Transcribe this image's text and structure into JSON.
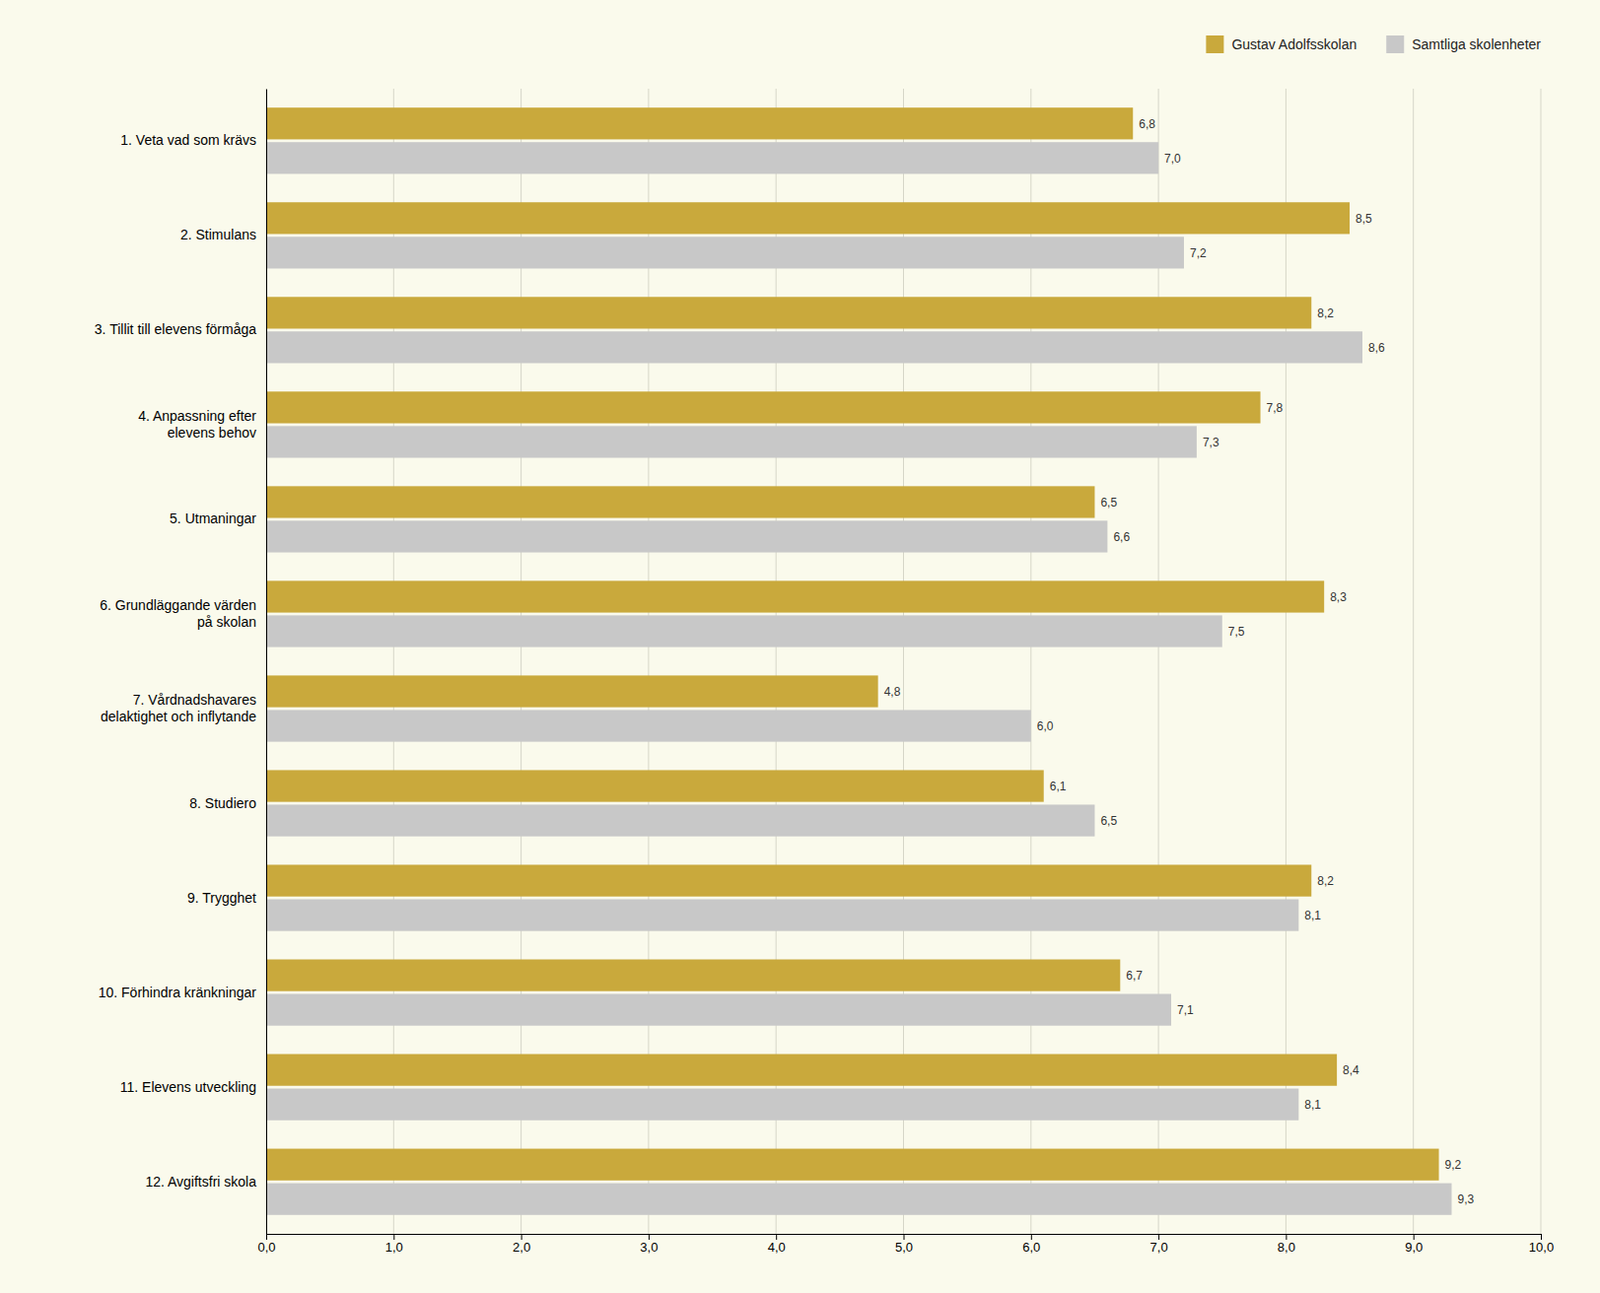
{
  "chart_data": {
    "type": "bar",
    "orientation": "horizontal",
    "categories": [
      "12. Avgiftsfri skola",
      "11. Elevens utveckling",
      "10. Förhindra kränkningar",
      "9. Trygghet",
      "8. Studiero",
      "7. Vårdnadshavares\ndelaktighet och inflytande",
      "6. Grundläggande värden\npå skolan",
      "5. Utmaningar",
      "4. Anpassning efter\nelevens behov",
      "3. Tillit till elevens förmåga",
      "2. Stimulans",
      "1. Veta vad som krävs"
    ],
    "series": [
      {
        "name": "Gustav Adolfsskolan",
        "color": "#C9A93C",
        "values": [
          9.2,
          8.4,
          6.7,
          8.2,
          6.1,
          4.8,
          8.3,
          6.5,
          7.8,
          8.2,
          8.5,
          6.8
        ],
        "value_labels": [
          "9,2",
          "8,4",
          "6,7",
          "8,2",
          "6,1",
          "4,8",
          "8,3",
          "6,5",
          "7,8",
          "8,2",
          "8,5",
          "6,8"
        ]
      },
      {
        "name": "Samtliga skolenheter",
        "color": "#C8C8C8",
        "values": [
          9.3,
          8.1,
          7.1,
          8.1,
          6.5,
          6.0,
          7.5,
          6.6,
          7.3,
          8.6,
          7.2,
          7.0
        ],
        "value_labels": [
          "9,3",
          "8,1",
          "7,1",
          "8,1",
          "6,5",
          "6,0",
          "7,5",
          "6,6",
          "7,3",
          "8,6",
          "7,2",
          "7,0"
        ]
      }
    ],
    "xlim": [
      0,
      10
    ],
    "xticks": [
      {
        "value": 0.0,
        "label": "0,0"
      },
      {
        "value": 1.0,
        "label": "1,0"
      },
      {
        "value": 2.0,
        "label": "2,0"
      },
      {
        "value": 3.0,
        "label": "3,0"
      },
      {
        "value": 4.0,
        "label": "4,0"
      },
      {
        "value": 5.0,
        "label": "5,0"
      },
      {
        "value": 6.0,
        "label": "6,0"
      },
      {
        "value": 7.0,
        "label": "7,0"
      },
      {
        "value": 8.0,
        "label": "8,0"
      },
      {
        "value": 9.0,
        "label": "9,0"
      },
      {
        "value": 10.0,
        "label": "10,0"
      }
    ],
    "grid": true,
    "legend": "upper right",
    "data_labels": true
  }
}
